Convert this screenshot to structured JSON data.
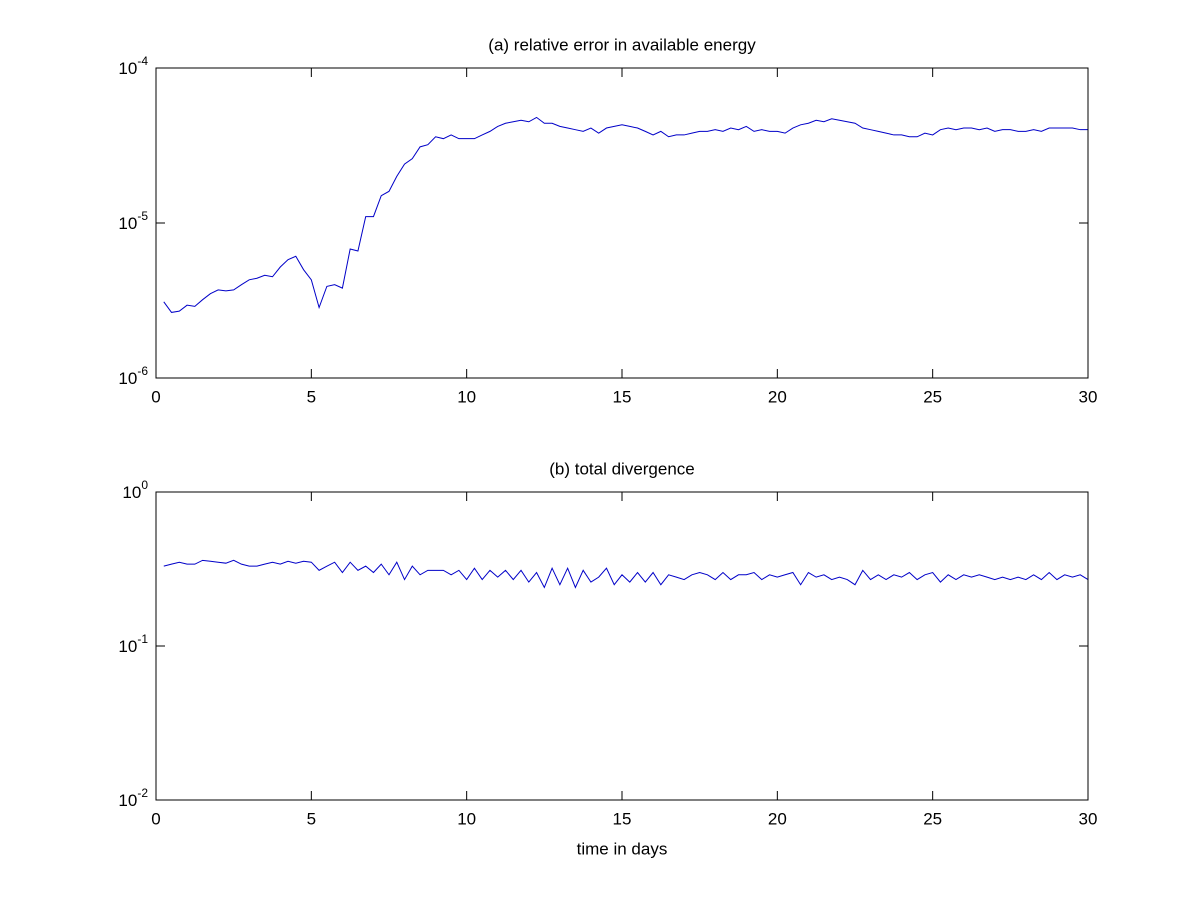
{
  "chart_data": [
    {
      "type": "line",
      "title": "(a) relative error in available energy",
      "x": [
        0.25,
        0.5,
        0.75,
        1,
        1.25,
        1.5,
        1.75,
        2,
        2.25,
        2.5,
        2.75,
        3,
        3.25,
        3.5,
        3.75,
        4,
        4.25,
        4.5,
        4.75,
        5,
        5.25,
        5.5,
        5.75,
        6,
        6.25,
        6.5,
        6.75,
        7,
        7.25,
        7.5,
        7.75,
        8,
        8.25,
        8.5,
        8.75,
        9,
        9.25,
        9.5,
        9.75,
        10,
        10.25,
        10.5,
        10.75,
        11,
        11.25,
        11.5,
        11.75,
        12,
        12.25,
        12.5,
        12.75,
        13,
        13.25,
        13.5,
        13.75,
        14,
        14.25,
        14.5,
        14.75,
        15,
        15.25,
        15.5,
        15.75,
        16,
        16.25,
        16.5,
        16.75,
        17,
        17.25,
        17.5,
        17.75,
        18,
        18.25,
        18.5,
        18.75,
        19,
        19.25,
        19.5,
        19.75,
        20,
        20.25,
        20.5,
        20.75,
        21,
        21.25,
        21.5,
        21.75,
        22,
        22.25,
        22.5,
        22.75,
        23,
        23.25,
        23.5,
        23.75,
        24,
        24.25,
        24.5,
        24.75,
        25,
        25.25,
        25.5,
        25.75,
        26,
        26.25,
        26.5,
        26.75,
        27,
        27.25,
        27.5,
        27.75,
        28,
        28.25,
        28.5,
        28.75,
        29,
        29.25,
        29.5,
        29.75,
        30
      ],
      "series": [
        {
          "color": "#0000c8",
          "values": [
            3.1e-06,
            2.65e-06,
            2.7e-06,
            2.95e-06,
            2.9e-06,
            3.2e-06,
            3.5e-06,
            3.7e-06,
            3.65e-06,
            3.7e-06,
            4e-06,
            4.3e-06,
            4.4e-06,
            4.6e-06,
            4.5e-06,
            5.2e-06,
            5.8e-06,
            6.1e-06,
            5e-06,
            4.3e-06,
            2.85e-06,
            3.9e-06,
            4e-06,
            3.8e-06,
            6.8e-06,
            6.6e-06,
            1.1e-05,
            1.1e-05,
            1.5e-05,
            1.6e-05,
            2e-05,
            2.4e-05,
            2.6e-05,
            3.1e-05,
            3.2e-05,
            3.6e-05,
            3.5e-05,
            3.7e-05,
            3.5e-05,
            3.5e-05,
            3.5e-05,
            3.7e-05,
            3.9e-05,
            4.2e-05,
            4.4e-05,
            4.5e-05,
            4.6e-05,
            4.5e-05,
            4.8e-05,
            4.4e-05,
            4.4e-05,
            4.2e-05,
            4.1e-05,
            4e-05,
            3.9e-05,
            4.1e-05,
            3.8e-05,
            4.1e-05,
            4.2e-05,
            4.3e-05,
            4.2e-05,
            4.1e-05,
            3.9e-05,
            3.7e-05,
            3.9e-05,
            3.6e-05,
            3.7e-05,
            3.7e-05,
            3.8e-05,
            3.9e-05,
            3.9e-05,
            4e-05,
            3.9e-05,
            4.1e-05,
            4e-05,
            4.2e-05,
            3.9e-05,
            4e-05,
            3.9e-05,
            3.9e-05,
            3.8e-05,
            4.1e-05,
            4.3e-05,
            4.4e-05,
            4.6e-05,
            4.5e-05,
            4.7e-05,
            4.6e-05,
            4.5e-05,
            4.4e-05,
            4.1e-05,
            4e-05,
            3.9e-05,
            3.8e-05,
            3.7e-05,
            3.7e-05,
            3.6e-05,
            3.6e-05,
            3.8e-05,
            3.7e-05,
            4e-05,
            4.1e-05,
            4e-05,
            4.1e-05,
            4.1e-05,
            4e-05,
            4.1e-05,
            3.9e-05,
            4e-05,
            4e-05,
            3.9e-05,
            3.9e-05,
            4e-05,
            3.9e-05,
            4.1e-05,
            4.1e-05,
            4.1e-05,
            4.1e-05,
            4e-05,
            4e-05
          ]
        }
      ],
      "xlim": [
        0,
        30
      ],
      "xticks": [
        0,
        5,
        10,
        15,
        20,
        25,
        30
      ],
      "ylim": [
        1e-06,
        0.0001
      ],
      "ylog": true,
      "yticks": [
        {
          "value": 1e-06,
          "label": "10^-6"
        },
        {
          "value": 1e-05,
          "label": "10^-5"
        },
        {
          "value": 0.0001,
          "label": "10^-4"
        }
      ]
    },
    {
      "type": "line",
      "title": "(b) total divergence",
      "xlabel": "time in days",
      "x": [
        0.25,
        0.5,
        0.75,
        1,
        1.25,
        1.5,
        1.75,
        2,
        2.25,
        2.5,
        2.75,
        3,
        3.25,
        3.5,
        3.75,
        4,
        4.25,
        4.5,
        4.75,
        5,
        5.25,
        5.5,
        5.75,
        6,
        6.25,
        6.5,
        6.75,
        7,
        7.25,
        7.5,
        7.75,
        8,
        8.25,
        8.5,
        8.75,
        9,
        9.25,
        9.5,
        9.75,
        10,
        10.25,
        10.5,
        10.75,
        11,
        11.25,
        11.5,
        11.75,
        12,
        12.25,
        12.5,
        12.75,
        13,
        13.25,
        13.5,
        13.75,
        14,
        14.25,
        14.5,
        14.75,
        15,
        15.25,
        15.5,
        15.75,
        16,
        16.25,
        16.5,
        16.75,
        17,
        17.25,
        17.5,
        17.75,
        18,
        18.25,
        18.5,
        18.75,
        19,
        19.25,
        19.5,
        19.75,
        20,
        20.25,
        20.5,
        20.75,
        21,
        21.25,
        21.5,
        21.75,
        22,
        22.25,
        22.5,
        22.75,
        23,
        23.25,
        23.5,
        23.75,
        24,
        24.25,
        24.5,
        24.75,
        25,
        25.25,
        25.5,
        25.75,
        26,
        26.25,
        26.5,
        26.75,
        27,
        27.25,
        27.5,
        27.75,
        28,
        28.25,
        28.5,
        28.75,
        29,
        29.25,
        29.5,
        29.75,
        30
      ],
      "series": [
        {
          "color": "#0000c8",
          "values": [
            0.33,
            0.34,
            0.35,
            0.34,
            0.34,
            0.36,
            0.355,
            0.35,
            0.345,
            0.36,
            0.34,
            0.33,
            0.33,
            0.34,
            0.35,
            0.34,
            0.355,
            0.345,
            0.355,
            0.35,
            0.31,
            0.33,
            0.35,
            0.3,
            0.35,
            0.31,
            0.33,
            0.3,
            0.34,
            0.29,
            0.35,
            0.27,
            0.33,
            0.29,
            0.31,
            0.31,
            0.31,
            0.29,
            0.31,
            0.27,
            0.32,
            0.27,
            0.31,
            0.28,
            0.31,
            0.27,
            0.31,
            0.26,
            0.3,
            0.24,
            0.32,
            0.25,
            0.32,
            0.24,
            0.31,
            0.26,
            0.28,
            0.32,
            0.25,
            0.29,
            0.26,
            0.3,
            0.26,
            0.3,
            0.25,
            0.29,
            0.28,
            0.27,
            0.29,
            0.3,
            0.29,
            0.27,
            0.3,
            0.27,
            0.29,
            0.29,
            0.3,
            0.27,
            0.29,
            0.28,
            0.29,
            0.3,
            0.25,
            0.3,
            0.28,
            0.29,
            0.27,
            0.28,
            0.27,
            0.25,
            0.31,
            0.27,
            0.29,
            0.27,
            0.29,
            0.28,
            0.3,
            0.27,
            0.29,
            0.3,
            0.26,
            0.29,
            0.27,
            0.29,
            0.28,
            0.29,
            0.28,
            0.27,
            0.28,
            0.27,
            0.28,
            0.27,
            0.29,
            0.27,
            0.3,
            0.27,
            0.29,
            0.28,
            0.29,
            0.27
          ]
        }
      ],
      "xlim": [
        0,
        30
      ],
      "xticks": [
        0,
        5,
        10,
        15,
        20,
        25,
        30
      ],
      "ylim": [
        0.01,
        1
      ],
      "ylog": true,
      "yticks": [
        {
          "value": 0.01,
          "label": "10^-2"
        },
        {
          "value": 0.1,
          "label": "10^-1"
        },
        {
          "value": 1,
          "label": "10^0"
        }
      ]
    }
  ]
}
